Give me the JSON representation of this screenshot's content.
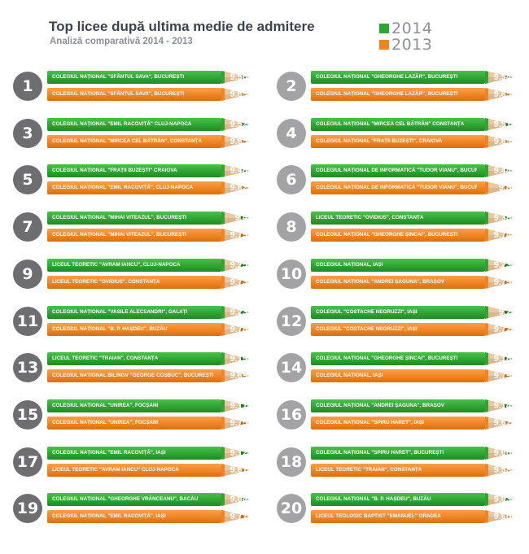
{
  "header": {
    "title": "Top licee după ultima medie de admitere",
    "subtitle": "Analiză comparativă 2014 - 2013"
  },
  "colors": {
    "green_2014": "#2fa533",
    "orange_2013": "#f08520",
    "badge_dark": "#6e6e70",
    "badge_light": "#a3a3a5",
    "pencil_wood": "#d9b48c",
    "lead_green": "#1d7a20",
    "lead_orange": "#c96a10"
  },
  "chart_data": {
    "type": "bar",
    "title": "Top licee după ultima medie de admitere",
    "subtitle": "Analiză comparativă 2014 - 2013",
    "legend": {
      "placement": "top-right",
      "labels": [
        "2014",
        "2013"
      ]
    },
    "grid": false,
    "rows": [
      {
        "rank": "1",
        "school_2014": "COLEGIUL NAȚIONAL \"SFÂNTUL SAVA\", BUCUREȘTI",
        "score_2014": "9.56",
        "school_2013": "COLEGIUL NAȚIONAL \"SFÂNTUL SAVA\", BUCUREȘTI",
        "score_2013": "9.89"
      },
      {
        "rank": "2",
        "school_2014": "COLEGIUL NAȚIONAL \"GHEORGHE LAZĂR\", BUCUREȘTI",
        "score_2014": "9.54",
        "school_2013": "COLEGIUL NAȚIONAL \"GHEORGHE LAZĂR\", BUCUREȘTI",
        "score_2013": "9.85"
      },
      {
        "rank": "3",
        "school_2014": "COLEGIUL NAȚIONAL \"EMIL RACOVIȚĂ\" CLUJ-NAPOCA",
        "score_2014": "9.52",
        "school_2013": "COLEGIUL NAȚIONAL \"MIRCEA CEL BĂTRÂN\", CONSTANȚA",
        "score_2013": "9.85"
      },
      {
        "rank": "4",
        "school_2014": "COLEGIUL NAȚIONAL \"MIRCEA CEL BĂTRÂN\" CONSTANȚA",
        "score_2014": "9.51",
        "school_2013": "COLEGIUL NAȚIONAL \"FRAȚII BUZEȘTI\", CRAIOVA",
        "score_2013": "9.89"
      },
      {
        "rank": "5",
        "school_2014": "COLEGIUL NAȚIONAL \"FRAȚII BUZEȘTI\" CRAIOVA",
        "score_2014": "9.46",
        "school_2013": "COLEGIUL NAȚIONAL \"EMIL RACOVIȚĂ\", CLUJ-NAPOCA",
        "score_2013": "9.82"
      },
      {
        "rank": "6",
        "school_2014": "COLEGIUL NAȚIONAL DE INFORMATICĂ \"TUDOR VIANU\", BUCUREȘTI",
        "score_2014": "9.44",
        "school_2013": "COLEGIUL NAȚIONAL DE INFORMATICĂ \"TUDOR VIANU\", BUCUREȘTI",
        "score_2013": "9.8"
      },
      {
        "rank": "7",
        "school_2014": "COLEGIUL NAȚIONAL \"MIHAI VITEAZUL\", BUCUREȘTI",
        "score_2014": "9.4",
        "school_2013": "COLEGIUL NAȚIONAL \"MIHAI VITEAZUL\", BUCUREȘTI",
        "score_2013": "9.79"
      },
      {
        "rank": "8",
        "school_2014": "LICEUL TEORETIC \"OVIDIUS\", CONSTANȚA",
        "score_2014": "9.38",
        "school_2013": "COLEGIUL NAȚIONAL \"GHEORGHE ȘINCAI\", BUCUREȘTI",
        "score_2013": "9.74"
      },
      {
        "rank": "9",
        "school_2014": "LICEUL TEORETIC \"AVRAM IANCU\", CLUJ-NAPOCA",
        "score_2014": "9.25",
        "school_2013": "LICEUL TEORETIC \"OVIDIUS\", CONSTANȚA",
        "score_2013": "9.73"
      },
      {
        "rank": "10",
        "school_2014": "COLEGIUL NAȚIONAL, IAȘI",
        "score_2014": "9.23",
        "school_2013": "COLEGIUL NAȚIONAL \"ANDREI ȘAGUNA\", BRAȘOV",
        "score_2013": "9.79"
      },
      {
        "rank": "11",
        "school_2014": "COLEGIUL NAȚIONAL \"VASILE ALECSANDRI\", GALAȚI",
        "score_2014": "9.23",
        "school_2013": "COLEGIUL NAȚIONAL \"B. P. HAȘDEU\", BUZĂU",
        "score_2013": "9.78"
      },
      {
        "rank": "12",
        "school_2014": "COLEGIUL \"COSTACHE NEGRUZZI\", IAȘI",
        "score_2014": "9.2",
        "school_2013": "COLEGIUL \"COSTACHE NEGRUZZI\", IAȘI",
        "score_2013": "9.72"
      },
      {
        "rank": "13",
        "school_2014": "LICEUL TEORETIC \"TRAIAN\", CONSTANȚA",
        "score_2014": "9.19",
        "school_2013": "COLEGIUL NAȚIONAL BILINGV \"GEORGE COȘBUC\", BUCUREȘTI",
        "score_2013": "9.69"
      },
      {
        "rank": "14",
        "school_2014": "COLEGIUL NAȚIONAL \"GHEORGHE ȘINCAI\", BUCUREȘTI",
        "score_2014": "9.18",
        "school_2013": "COLEGIUL NAȚIONAL, IAȘI",
        "score_2013": "9.79"
      },
      {
        "rank": "15",
        "school_2014": "COLEGIUL NAȚIONAL \"UNIREA\", FOCȘANI",
        "score_2014": "9.17",
        "school_2013": "COLEGIUL NAȚIONAL \"UNIREA\", FOCȘANI",
        "score_2013": "9.75"
      },
      {
        "rank": "16",
        "school_2014": "COLEGIUL NAȚIONAL \"ANDREI ȘAGUNA\", BRAȘOV",
        "score_2014": "9.14",
        "school_2013": "COLEGIUL NAȚIONAL \"SPIRU HARET\", IAȘI",
        "score_2013": "9.62"
      },
      {
        "rank": "17",
        "school_2014": "COLEGIUL NAȚIONAL \"EMIL RACOVIȚĂ\", IAȘI",
        "score_2014": "9.12",
        "school_2013": "LICEUL TEORETIC \"AVRAM IANCU\" CLUJ-NAPOCA",
        "score_2013": "9.67"
      },
      {
        "rank": "18",
        "school_2014": "COLEGIUL NAȚIONAL \"SPIRU HARET\", BUCUREȘTI",
        "score_2014": "9.06",
        "school_2013": "LICEUL TEORETIC \"TRAIAN\", CONSTANȚA",
        "score_2013": "9.58"
      },
      {
        "rank": "19",
        "school_2014": "COLEGIUL NAȚIONAL \"GHEORGHE VRĂNCEANU\", BACĂU",
        "score_2014": "9.04",
        "school_2013": "COLEGIUL NAȚIONAL \"EMIL RACOVIȚĂ\", IAȘI",
        "score_2013": "9.77"
      },
      {
        "rank": "20",
        "school_2014": "COLEGIUL NAȚIONAL \"B. P. HAȘDEU\", BUZĂU",
        "score_2014": "9.03",
        "school_2013": "LICEUL TEOLOGIC BAPTIST \"EMANUEL\" ORADEA",
        "score_2013": "9.66"
      }
    ]
  }
}
